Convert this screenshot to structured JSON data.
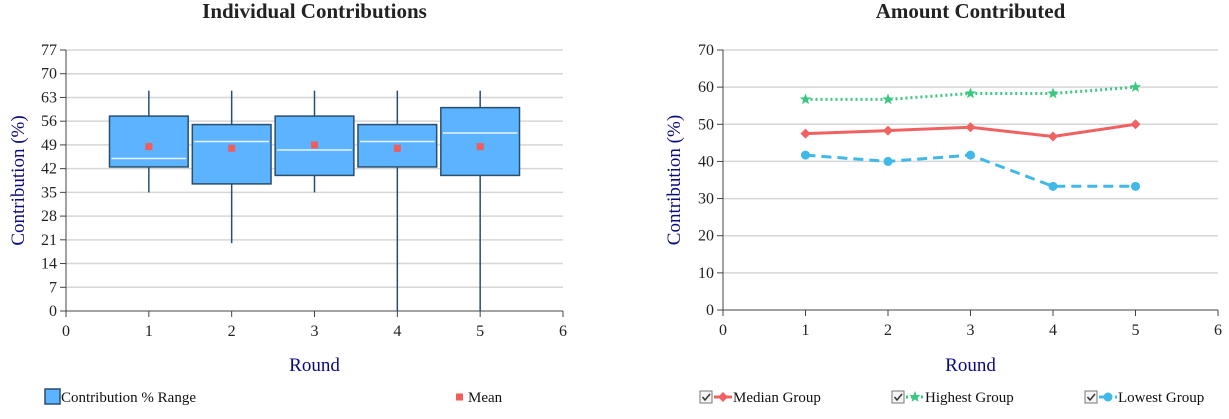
{
  "chart_data": [
    {
      "type": "box",
      "title": "Individual Contributions",
      "xlabel": "Round",
      "ylabel": "Contribution (%)",
      "xlim": [
        0,
        6
      ],
      "ylim": [
        0,
        77
      ],
      "xticks": [
        "0",
        "1",
        "2",
        "3",
        "4",
        "5",
        "6"
      ],
      "yticks": [
        "0",
        "7",
        "14",
        "21",
        "28",
        "35",
        "42",
        "49",
        "56",
        "63",
        "70",
        "77"
      ],
      "grid": true,
      "legend_position": "bottom",
      "legend": [
        {
          "label": "Contribution % Range",
          "color": "#5cb3ff"
        },
        {
          "label": "Mean",
          "color": "#f25c5c"
        }
      ],
      "boxes": [
        {
          "x": 1,
          "low": 35,
          "q1": 42.5,
          "median": 45,
          "q3": 57.5,
          "high": 65,
          "mean": 48.5
        },
        {
          "x": 2,
          "low": 20,
          "q1": 37.5,
          "median": 50,
          "q3": 55,
          "high": 65,
          "mean": 48
        },
        {
          "x": 3,
          "low": 35,
          "q1": 40,
          "median": 47.5,
          "q3": 57.5,
          "high": 65,
          "mean": 49
        },
        {
          "x": 4,
          "low": 0,
          "q1": 42.5,
          "median": 50,
          "q3": 55,
          "high": 65,
          "mean": 48
        },
        {
          "x": 5,
          "low": 0,
          "q1": 40,
          "median": 52.5,
          "q3": 60,
          "high": 65,
          "mean": 48.5
        }
      ]
    },
    {
      "type": "line",
      "title": "Amount Contributed",
      "xlabel": "Round",
      "ylabel": "Contribution (%)",
      "xlim": [
        0,
        6
      ],
      "ylim": [
        0,
        70
      ],
      "xticks": [
        "0",
        "1",
        "2",
        "3",
        "4",
        "5",
        "6"
      ],
      "yticks": [
        "0",
        "10",
        "20",
        "30",
        "40",
        "50",
        "60",
        "70"
      ],
      "grid": true,
      "legend_position": "bottom",
      "x": [
        1,
        2,
        3,
        4,
        5
      ],
      "series": [
        {
          "name": "Median Group",
          "values": [
            47.5,
            48.3,
            49.2,
            46.7,
            50
          ],
          "color": "#f06262",
          "dash": "solid",
          "marker": "diamond"
        },
        {
          "name": "Highest Group",
          "values": [
            56.7,
            56.7,
            58.3,
            58.3,
            60
          ],
          "color": "#3cc882",
          "dash": "dotted",
          "marker": "star"
        },
        {
          "name": "Lowest Group",
          "values": [
            41.7,
            40,
            41.7,
            33.3,
            33.3
          ],
          "color": "#40b8e8",
          "dash": "dashed",
          "marker": "circle"
        }
      ]
    }
  ]
}
